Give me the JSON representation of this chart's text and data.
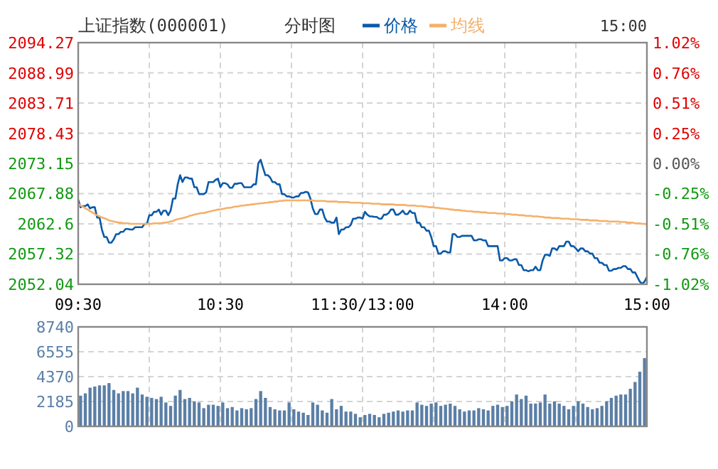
{
  "chart_data": [
    {
      "type": "line",
      "title": "上证指数(000001)",
      "subtitle": "分时图",
      "annotations": [
        "15:00"
      ],
      "legend": "top",
      "grid": true,
      "categories": [
        "09:30",
        null,
        null,
        null,
        null,
        null,
        null,
        null,
        null,
        null,
        null,
        null,
        null,
        null,
        null,
        null,
        null,
        null,
        null,
        null,
        null,
        null,
        null,
        null,
        null,
        null,
        null,
        null,
        null,
        null,
        null,
        null,
        null,
        null,
        null,
        null,
        null,
        null,
        null,
        null,
        null,
        null,
        null,
        null,
        null,
        null,
        null,
        null,
        null,
        null,
        null,
        null,
        null,
        null,
        null,
        null,
        null,
        null,
        null,
        null,
        "10:30",
        null,
        null,
        null,
        null,
        null,
        null,
        null,
        null,
        null,
        null,
        null,
        null,
        null,
        null,
        null,
        null,
        null,
        null,
        null,
        null,
        null,
        null,
        null,
        null,
        null,
        null,
        null,
        null,
        null,
        null,
        null,
        null,
        null,
        null,
        null,
        null,
        null,
        null,
        null,
        null,
        null,
        null,
        null,
        null,
        null,
        null,
        null,
        null,
        null,
        null,
        null,
        null,
        null,
        null,
        null,
        null,
        null,
        null,
        null,
        "11:30/13:00",
        null,
        null,
        null,
        null,
        null,
        null,
        null,
        null,
        null,
        null,
        null,
        null,
        null,
        null,
        null,
        null,
        null,
        null,
        null,
        null,
        null,
        null,
        null,
        null,
        null,
        null,
        null,
        null,
        null,
        null,
        null,
        null,
        null,
        null,
        null,
        null,
        null,
        null,
        null,
        null,
        null,
        null,
        null,
        null,
        null,
        null,
        null,
        null,
        null,
        null,
        null,
        null,
        null,
        null,
        null,
        null,
        null,
        null,
        null,
        "14:00",
        null,
        null,
        null,
        null,
        null,
        null,
        null,
        null,
        null,
        null,
        null,
        null,
        null,
        null,
        null,
        null,
        null,
        null,
        null,
        null,
        null,
        null,
        null,
        null,
        null,
        null,
        null,
        null,
        null,
        null,
        null,
        null,
        null,
        null,
        null,
        null,
        null,
        null,
        null,
        null,
        null,
        null,
        null,
        null,
        null,
        null,
        null,
        null,
        null,
        null,
        null,
        null,
        null,
        null,
        null,
        null,
        null,
        null,
        null,
        "15:00"
      ],
      "ylim": [
        2052.04,
        2094.27
      ],
      "yticks": [
        2052.04,
        2057.32,
        2062.6,
        2067.88,
        2073.15,
        2078.43,
        2083.71,
        2088.99,
        2094.27
      ],
      "y2lim": [
        -1.02,
        1.02
      ],
      "y2ticks": [
        {
          "value": -1.02,
          "label": "-1.02%"
        },
        {
          "value": -0.76,
          "label": "-0.76%"
        },
        {
          "value": -0.51,
          "label": "-0.51%"
        },
        {
          "value": -0.25,
          "label": "-0.25%"
        },
        {
          "value": 0,
          "label": "0.00%"
        },
        {
          "value": 0.25,
          "label": "0.25%"
        },
        {
          "value": 0.51,
          "label": "0.51%"
        },
        {
          "value": 0.76,
          "label": "0.76%"
        },
        {
          "value": 1.02,
          "label": "1.02%"
        }
      ],
      "series": [
        {
          "name": "价格",
          "color": "#0b5aa8",
          "values": [
            2066.8,
            2065.5,
            2065.7,
            2065.7,
            2066.0,
            2065.3,
            2065.5,
            2065.5,
            2063.7,
            2063.7,
            2061.6,
            2060.3,
            2060.3,
            2059.3,
            2059.3,
            2059.9,
            2060.8,
            2060.8,
            2061.2,
            2061.2,
            2061.7,
            2061.7,
            2061.6,
            2061.6,
            2062.0,
            2062.0,
            2062.0,
            2062.0,
            2062.6,
            2062.6,
            2064.1,
            2064.1,
            2064.7,
            2064.7,
            2065.1,
            2064.2,
            2064.9,
            2064.9,
            2064.1,
            2064.9,
            2067.0,
            2067.0,
            2069.5,
            2071.1,
            2069.9,
            2070.7,
            2070.7,
            2070.5,
            2070.5,
            2069.0,
            2069.0,
            2067.8,
            2067.8,
            2067.8,
            2068.1,
            2069.9,
            2069.9,
            2069.9,
            2070.3,
            2070.5,
            2069.0,
            2069.7,
            2069.7,
            2069.5,
            2068.9,
            2068.9,
            2069.6,
            2069.6,
            2069.7,
            2069.7,
            2069.0,
            2069.0,
            2069.0,
            2069.0,
            2069.5,
            2069.5,
            2073.2,
            2073.8,
            2072.4,
            2071.1,
            2071.1,
            2070.7,
            2069.9,
            2069.9,
            2069.5,
            2069.5,
            2067.8,
            2067.8,
            2067.4,
            2067.4,
            2067.2,
            2067.2,
            2067.4,
            2067.4,
            2068.0,
            2068.0,
            2068.2,
            2068.1,
            2067.0,
            2065.3,
            2064.3,
            2064.3,
            2065.1,
            2065.1,
            2063.7,
            2063.0,
            2063.0,
            2062.8,
            2062.8,
            2063.7,
            2060.8,
            2061.6,
            2061.6,
            2062.0,
            2062.0,
            2062.4,
            2063.5,
            2063.5,
            2063.7,
            2063.7,
            2063.5,
            2064.7,
            2064.2,
            2063.9,
            2063.9,
            2063.8,
            2063.8,
            2063.5,
            2063.5,
            2064.2,
            2064.2,
            2064.5,
            2065.1,
            2065.1,
            2064.2,
            2064.2,
            2064.5,
            2064.9,
            2064.3,
            2064.3,
            2064.9,
            2064.5,
            2064.5,
            2062.8,
            2062.8,
            2062.0,
            2062.0,
            2061.4,
            2061.4,
            2060.3,
            2058.7,
            2058.7,
            2057.4,
            2057.4,
            2057.8,
            2057.8,
            2057.6,
            2057.6,
            2060.8,
            2060.8,
            2060.3,
            2060.3,
            2060.5,
            2060.5,
            2060.5,
            2060.5,
            2060.5,
            2059.7,
            2059.7,
            2059.9,
            2059.9,
            2059.7,
            2059.7,
            2058.7,
            2058.7,
            2058.7,
            2058.7,
            2058.7,
            2056.2,
            2056.2,
            2056.6,
            2056.6,
            2056.2,
            2056.2,
            2056.4,
            2056.4,
            2055.4,
            2055.4,
            2054.5,
            2054.5,
            2054.3,
            2054.5,
            2054.5,
            2055.1,
            2054.5,
            2054.5,
            2056.2,
            2057.2,
            2057.2,
            2057.0,
            2058.3,
            2058.3,
            2058.0,
            2058.7,
            2058.7,
            2058.7,
            2059.5,
            2059.5,
            2058.7,
            2058.7,
            2058.3,
            2057.8,
            2058.3,
            2058.3,
            2057.8,
            2057.8,
            2057.4,
            2057.4,
            2056.6,
            2056.6,
            2055.8,
            2055.8,
            2055.4,
            2055.4,
            2054.4,
            2054.4,
            2054.7,
            2054.7,
            2054.9,
            2054.9,
            2055.2,
            2055.2,
            2054.7,
            2054.7,
            2054.1,
            2054.1,
            2053.3,
            2052.5,
            2052.1,
            2052.5,
            2053.3
          ]
        },
        {
          "name": "均线",
          "color": "#f5b06a",
          "values": [
            2066.1,
            2065.8,
            2065.6,
            2065.3,
            2065.1,
            2064.8,
            2064.6,
            2064.3,
            2064.1,
            2063.9,
            2063.7,
            2063.6,
            2063.4,
            2063.2,
            2063.1,
            2063.0,
            2062.9,
            2062.8,
            2062.8,
            2062.7,
            2062.7,
            2062.7,
            2062.6,
            2062.6,
            2062.6,
            2062.6,
            2062.6,
            2062.6,
            2062.6,
            2062.6,
            2062.6,
            2062.6,
            2062.7,
            2062.7,
            2062.7,
            2062.7,
            2062.8,
            2062.8,
            2062.9,
            2063.0,
            2063.1,
            2063.3,
            2063.4,
            2063.5,
            2063.6,
            2063.7,
            2063.8,
            2064.0,
            2064.1,
            2064.2,
            2064.3,
            2064.4,
            2064.5,
            2064.5,
            2064.6,
            2064.7,
            2064.8,
            2064.9,
            2065.0,
            2065.1,
            2065.1,
            2065.2,
            2065.3,
            2065.4,
            2065.4,
            2065.5,
            2065.6,
            2065.6,
            2065.7,
            2065.8,
            2065.8,
            2065.9,
            2065.9,
            2066.0,
            2066.0,
            2066.1,
            2066.1,
            2066.2,
            2066.2,
            2066.3,
            2066.3,
            2066.4,
            2066.4,
            2066.5,
            2066.5,
            2066.6,
            2066.6,
            2066.7,
            2066.7,
            2066.7,
            2066.7,
            2066.7,
            2066.7,
            2066.7,
            2066.7,
            2066.7,
            2066.7,
            2066.7,
            2066.7,
            2066.7,
            2066.6,
            2066.6,
            2066.6,
            2066.6,
            2066.6,
            2066.5,
            2066.5,
            2066.5,
            2066.5,
            2066.5,
            2066.4,
            2066.4,
            2066.4,
            2066.4,
            2066.4,
            2066.3,
            2066.3,
            2066.3,
            2066.3,
            2066.3,
            2066.2,
            2066.2,
            2066.2,
            2066.2,
            2066.1,
            2066.1,
            2066.1,
            2066.1,
            2066.0,
            2066.0,
            2066.0,
            2066.0,
            2066.0,
            2066.0,
            2065.9,
            2065.9,
            2065.9,
            2065.9,
            2065.9,
            2065.8,
            2065.8,
            2065.8,
            2065.8,
            2065.7,
            2065.7,
            2065.7,
            2065.6,
            2065.6,
            2065.5,
            2065.5,
            2065.5,
            2065.4,
            2065.4,
            2065.3,
            2065.3,
            2065.2,
            2065.2,
            2065.1,
            2065.1,
            2065.0,
            2065.0,
            2065.0,
            2064.9,
            2064.9,
            2064.8,
            2064.8,
            2064.8,
            2064.7,
            2064.7,
            2064.7,
            2064.6,
            2064.6,
            2064.6,
            2064.5,
            2064.5,
            2064.5,
            2064.5,
            2064.4,
            2064.4,
            2064.4,
            2064.3,
            2064.3,
            2064.3,
            2064.2,
            2064.2,
            2064.2,
            2064.1,
            2064.1,
            2064.1,
            2064.0,
            2064.0,
            2064.0,
            2063.9,
            2063.9,
            2063.9,
            2063.8,
            2063.8,
            2063.7,
            2063.7,
            2063.7,
            2063.6,
            2063.6,
            2063.6,
            2063.6,
            2063.5,
            2063.5,
            2063.5,
            2063.5,
            2063.4,
            2063.4,
            2063.4,
            2063.4,
            2063.3,
            2063.3,
            2063.3,
            2063.3,
            2063.2,
            2063.2,
            2063.2,
            2063.2,
            2063.1,
            2063.1,
            2063.1,
            2063.1,
            2063.0,
            2063.0,
            2063.0,
            2063.0,
            2063.0,
            2062.9,
            2062.9,
            2062.9,
            2062.8,
            2062.8,
            2062.8,
            2062.7,
            2062.7,
            2062.7,
            2062.6,
            2062.6,
            2062.5
          ]
        }
      ]
    },
    {
      "type": "bar",
      "grid": true,
      "tick_labels": "y",
      "categories": [
        null,
        null,
        null,
        null,
        null,
        null,
        null,
        null,
        null,
        null,
        null,
        null,
        null,
        null,
        null,
        null,
        null,
        null,
        null,
        null,
        null,
        null,
        null,
        null,
        null,
        null,
        null,
        null,
        null,
        null,
        null,
        null,
        null,
        null,
        null,
        null,
        null,
        null,
        null,
        null,
        null,
        null,
        null,
        null,
        null,
        null,
        null,
        null,
        null,
        null,
        null,
        null,
        null,
        null,
        null,
        null,
        null,
        null,
        null,
        null,
        null,
        null,
        null,
        null,
        null,
        null,
        null,
        null,
        null,
        null,
        null,
        null,
        null,
        null,
        null,
        null,
        null,
        null,
        null,
        null,
        null,
        null,
        null,
        null,
        null,
        null,
        null,
        null,
        null,
        null,
        null,
        null,
        null,
        null,
        null,
        null,
        null,
        null,
        null,
        null,
        null,
        null,
        null,
        null,
        null,
        null,
        null,
        null,
        null,
        null,
        null,
        null,
        null,
        null,
        null,
        null,
        null,
        null,
        null,
        null,
        null,
        null,
        null,
        null,
        null,
        null,
        null,
        null,
        null,
        null,
        null,
        null,
        null,
        null,
        null,
        null,
        null,
        null,
        null,
        null,
        null,
        null,
        null,
        null,
        null,
        null,
        null,
        null,
        null,
        null,
        null,
        null,
        null,
        null,
        null,
        null,
        null,
        null,
        null,
        null,
        null,
        null,
        null,
        null,
        null,
        null,
        null,
        null,
        null,
        null,
        null,
        null,
        null,
        null,
        null,
        null,
        null,
        null,
        null,
        null,
        null,
        null,
        null,
        null,
        null,
        null,
        null,
        null,
        null,
        null,
        null,
        null,
        null,
        null,
        null,
        null,
        null,
        null,
        null,
        null,
        null,
        null,
        null,
        null,
        null,
        null,
        null,
        null,
        null,
        null,
        null,
        null,
        null,
        null,
        null,
        null,
        null,
        null,
        null,
        null,
        null,
        null,
        null,
        null,
        null,
        null,
        null,
        null,
        null,
        null,
        null,
        null,
        null,
        null,
        null,
        null,
        null,
        null,
        null,
        null,
        null
      ],
      "ylim": [
        0,
        8740
      ],
      "yticks": [
        0,
        2185,
        4370,
        6555,
        8740
      ],
      "series": [
        {
          "color": "#5b7fa6",
          "values": [
            null,
            2700,
            null,
            2900,
            null,
            3400,
            null,
            3500,
            null,
            3600,
            null,
            3600,
            null,
            3800,
            null,
            3200,
            null,
            2900,
            null,
            3100,
            null,
            3100,
            null,
            2900,
            null,
            3400,
            null,
            2800,
            null,
            2600,
            null,
            2500,
            null,
            2400,
            null,
            2600,
            null,
            2100,
            null,
            1800,
            null,
            2700,
            null,
            3200,
            null,
            2400,
            null,
            2500,
            null,
            2200,
            null,
            2100,
            null,
            1600,
            null,
            1900,
            null,
            1900,
            null,
            1800,
            null,
            2100,
            null,
            1600,
            null,
            1700,
            null,
            1400,
            null,
            1600,
            null,
            1500,
            null,
            1600,
            null,
            2400,
            null,
            3100,
            null,
            2500,
            null,
            1700,
            null,
            1500,
            null,
            1400,
            null,
            1400,
            null,
            2100,
            null,
            1500,
            null,
            1300,
            null,
            1200,
            null,
            1000,
            null,
            2100,
            null,
            1900,
            null,
            1400,
            null,
            1200,
            null,
            2400,
            null,
            1500,
            null,
            1800,
            null,
            1300,
            null,
            1300,
            null,
            1100,
            null,
            800,
            null,
            1000,
            null,
            1100,
            null,
            1000,
            null,
            800,
            null,
            1100,
            null,
            1200,
            null,
            1300,
            null,
            1400,
            null,
            1300,
            null,
            1400,
            null,
            1400,
            null,
            2100,
            null,
            1900,
            null,
            1800,
            null,
            2000,
            null,
            2100,
            null,
            1800,
            null,
            1900,
            null,
            2000,
            null,
            1800,
            null,
            1500,
            null,
            1300,
            null,
            1400,
            null,
            1400,
            null,
            1600,
            null,
            1500,
            null,
            1400,
            null,
            1800,
            null,
            1900,
            null,
            1700,
            null,
            1800,
            null,
            2200,
            null,
            2800,
            null,
            2400,
            null,
            2700,
            null,
            2000,
            null,
            2000,
            null,
            2100,
            null,
            2800,
            null,
            2000,
            null,
            2200,
            null,
            2000,
            null,
            1800,
            null,
            1500,
            null,
            1800,
            null,
            2200,
            null,
            2000,
            null,
            1700,
            null,
            1500,
            null,
            1600,
            null,
            1800,
            null,
            2200,
            null,
            2500,
            null,
            2700,
            null,
            2800,
            null,
            2800,
            null,
            3300,
            null,
            3900,
            null,
            4800,
            null,
            6000,
            null
          ]
        }
      ]
    }
  ]
}
